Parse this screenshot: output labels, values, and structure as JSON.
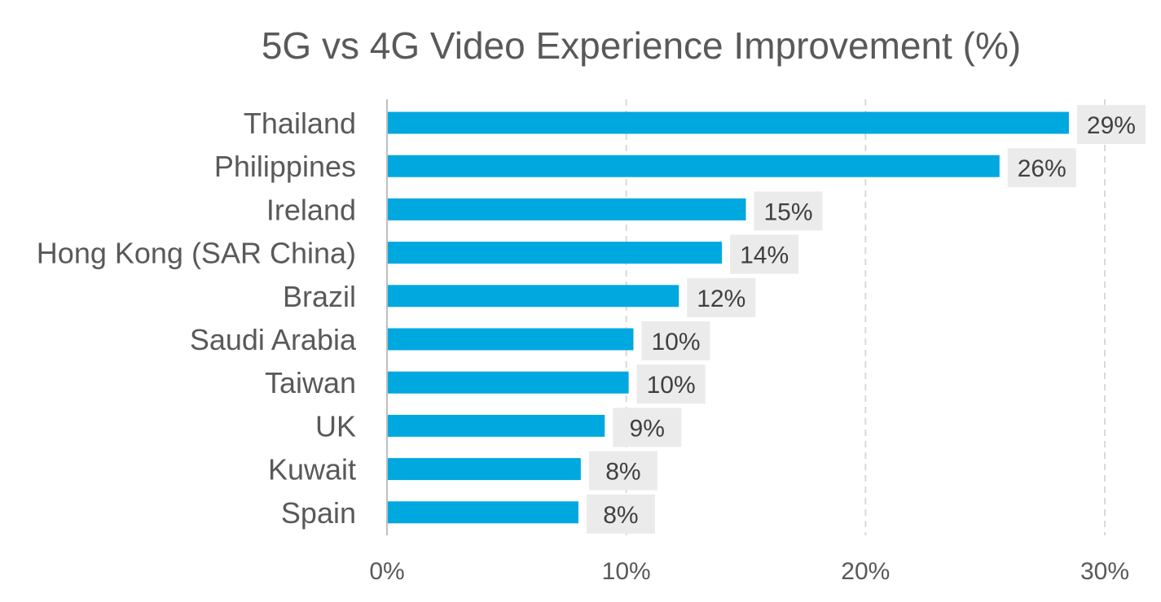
{
  "chart_data": {
    "type": "bar",
    "orientation": "horizontal",
    "title": "5G vs 4G Video Experience Improvement (%)",
    "xlabel": "",
    "ylabel": "",
    "categories": [
      "Thailand",
      "Philippines",
      "Ireland",
      "Hong Kong (SAR China)",
      "Brazil",
      "Saudi Arabia",
      "Taiwan",
      "UK",
      "Kuwait",
      "Spain"
    ],
    "values": [
      28.5,
      25.6,
      15.0,
      14.0,
      12.2,
      10.3,
      10.1,
      9.1,
      8.1,
      8.0
    ],
    "data_labels": [
      "29%",
      "26%",
      "15%",
      "14%",
      "12%",
      "10%",
      "10%",
      "9%",
      "8%",
      "8%"
    ],
    "xlim": [
      0,
      30
    ],
    "xticks": [
      0,
      10,
      20,
      30
    ],
    "xtick_labels": [
      "0%",
      "10%",
      "20%",
      "30%"
    ],
    "grid": "vertical dashed",
    "legend": "none",
    "colors": {
      "bar": "#00a8e0",
      "label_bg": "#ebebeb",
      "grid": "#d9d9d9",
      "text": "#595959"
    }
  }
}
